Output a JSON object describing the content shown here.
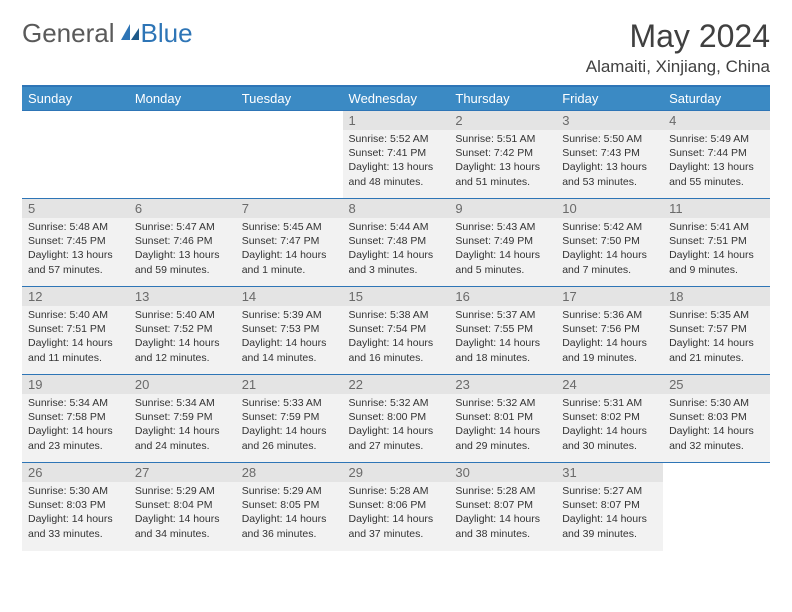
{
  "brand": {
    "part1": "General",
    "part2": "Blue"
  },
  "title": "May 2024",
  "location": "Alamaiti, Xinjiang, China",
  "colors": {
    "header_bg": "#3b8ac4",
    "header_text": "#ffffff",
    "border": "#2e75b6",
    "cell_bg": "#f2f2f2",
    "daynum_bg": "#e4e4e4",
    "text": "#333333",
    "title_text": "#404040"
  },
  "weekdays": [
    "Sunday",
    "Monday",
    "Tuesday",
    "Wednesday",
    "Thursday",
    "Friday",
    "Saturday"
  ],
  "days": {
    "1": {
      "sunrise": "5:52 AM",
      "sunset": "7:41 PM",
      "daylight": "13 hours and 48 minutes."
    },
    "2": {
      "sunrise": "5:51 AM",
      "sunset": "7:42 PM",
      "daylight": "13 hours and 51 minutes."
    },
    "3": {
      "sunrise": "5:50 AM",
      "sunset": "7:43 PM",
      "daylight": "13 hours and 53 minutes."
    },
    "4": {
      "sunrise": "5:49 AM",
      "sunset": "7:44 PM",
      "daylight": "13 hours and 55 minutes."
    },
    "5": {
      "sunrise": "5:48 AM",
      "sunset": "7:45 PM",
      "daylight": "13 hours and 57 minutes."
    },
    "6": {
      "sunrise": "5:47 AM",
      "sunset": "7:46 PM",
      "daylight": "13 hours and 59 minutes."
    },
    "7": {
      "sunrise": "5:45 AM",
      "sunset": "7:47 PM",
      "daylight": "14 hours and 1 minute."
    },
    "8": {
      "sunrise": "5:44 AM",
      "sunset": "7:48 PM",
      "daylight": "14 hours and 3 minutes."
    },
    "9": {
      "sunrise": "5:43 AM",
      "sunset": "7:49 PM",
      "daylight": "14 hours and 5 minutes."
    },
    "10": {
      "sunrise": "5:42 AM",
      "sunset": "7:50 PM",
      "daylight": "14 hours and 7 minutes."
    },
    "11": {
      "sunrise": "5:41 AM",
      "sunset": "7:51 PM",
      "daylight": "14 hours and 9 minutes."
    },
    "12": {
      "sunrise": "5:40 AM",
      "sunset": "7:51 PM",
      "daylight": "14 hours and 11 minutes."
    },
    "13": {
      "sunrise": "5:40 AM",
      "sunset": "7:52 PM",
      "daylight": "14 hours and 12 minutes."
    },
    "14": {
      "sunrise": "5:39 AM",
      "sunset": "7:53 PM",
      "daylight": "14 hours and 14 minutes."
    },
    "15": {
      "sunrise": "5:38 AM",
      "sunset": "7:54 PM",
      "daylight": "14 hours and 16 minutes."
    },
    "16": {
      "sunrise": "5:37 AM",
      "sunset": "7:55 PM",
      "daylight": "14 hours and 18 minutes."
    },
    "17": {
      "sunrise": "5:36 AM",
      "sunset": "7:56 PM",
      "daylight": "14 hours and 19 minutes."
    },
    "18": {
      "sunrise": "5:35 AM",
      "sunset": "7:57 PM",
      "daylight": "14 hours and 21 minutes."
    },
    "19": {
      "sunrise": "5:34 AM",
      "sunset": "7:58 PM",
      "daylight": "14 hours and 23 minutes."
    },
    "20": {
      "sunrise": "5:34 AM",
      "sunset": "7:59 PM",
      "daylight": "14 hours and 24 minutes."
    },
    "21": {
      "sunrise": "5:33 AM",
      "sunset": "7:59 PM",
      "daylight": "14 hours and 26 minutes."
    },
    "22": {
      "sunrise": "5:32 AM",
      "sunset": "8:00 PM",
      "daylight": "14 hours and 27 minutes."
    },
    "23": {
      "sunrise": "5:32 AM",
      "sunset": "8:01 PM",
      "daylight": "14 hours and 29 minutes."
    },
    "24": {
      "sunrise": "5:31 AM",
      "sunset": "8:02 PM",
      "daylight": "14 hours and 30 minutes."
    },
    "25": {
      "sunrise": "5:30 AM",
      "sunset": "8:03 PM",
      "daylight": "14 hours and 32 minutes."
    },
    "26": {
      "sunrise": "5:30 AM",
      "sunset": "8:03 PM",
      "daylight": "14 hours and 33 minutes."
    },
    "27": {
      "sunrise": "5:29 AM",
      "sunset": "8:04 PM",
      "daylight": "14 hours and 34 minutes."
    },
    "28": {
      "sunrise": "5:29 AM",
      "sunset": "8:05 PM",
      "daylight": "14 hours and 36 minutes."
    },
    "29": {
      "sunrise": "5:28 AM",
      "sunset": "8:06 PM",
      "daylight": "14 hours and 37 minutes."
    },
    "30": {
      "sunrise": "5:28 AM",
      "sunset": "8:07 PM",
      "daylight": "14 hours and 38 minutes."
    },
    "31": {
      "sunrise": "5:27 AM",
      "sunset": "8:07 PM",
      "daylight": "14 hours and 39 minutes."
    }
  },
  "layout": {
    "first_weekday_index": 3,
    "num_days": 31,
    "labels": {
      "sunrise": "Sunrise:",
      "sunset": "Sunset:",
      "daylight": "Daylight:"
    }
  }
}
